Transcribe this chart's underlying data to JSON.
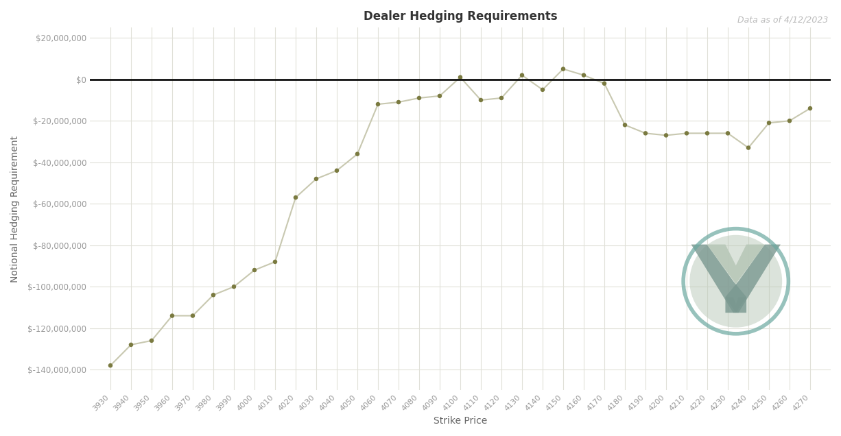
{
  "title": "Dealer Hedging Requirements",
  "subtitle": "Data as of 4/12/2023",
  "xlabel": "Strike Price",
  "ylabel": "Notional Hedging Requirement",
  "background_color": "#ffffff",
  "plot_bg_color": "#ffffff",
  "line_color": "#c8c8b0",
  "dot_color": "#7a7a40",
  "zero_line_color": "#111111",
  "grid_color": "#e0e0d8",
  "title_color": "#333333",
  "subtitle_color": "#bbbbbb",
  "ylabel_color": "#666666",
  "xlabel_color": "#666666",
  "tick_color": "#999999",
  "strikes": [
    3930,
    3940,
    3950,
    3960,
    3970,
    3980,
    3990,
    4000,
    4010,
    4020,
    4030,
    4040,
    4050,
    4060,
    4070,
    4080,
    4090,
    4100,
    4110,
    4120,
    4130,
    4140,
    4150,
    4160,
    4170,
    4180,
    4190,
    4200,
    4210,
    4220,
    4230,
    4240,
    4250,
    4260,
    4270
  ],
  "values": [
    -138000000,
    -128000000,
    -126000000,
    -114000000,
    -114000000,
    -104000000,
    -100000000,
    -92000000,
    -88000000,
    -57000000,
    -48000000,
    -44000000,
    -36000000,
    -12000000,
    -11000000,
    -9000000,
    -8000000,
    1000000,
    -10000000,
    -9000000,
    2000000,
    -5000000,
    5000000,
    2000000,
    -2000000,
    -22000000,
    -26000000,
    -27000000,
    -26000000,
    -26000000,
    -26000000,
    -33000000,
    -21000000,
    -20000000,
    -14000000
  ],
  "ylim": [
    -150000000,
    25000000
  ],
  "yticks": [
    20000000,
    0,
    -20000000,
    -40000000,
    -60000000,
    -80000000,
    -100000000,
    -120000000,
    -140000000
  ],
  "logo_ring_color": "#6ba8a0",
  "logo_light_color": "#b8c8b8",
  "logo_dark_color": "#7a9890"
}
